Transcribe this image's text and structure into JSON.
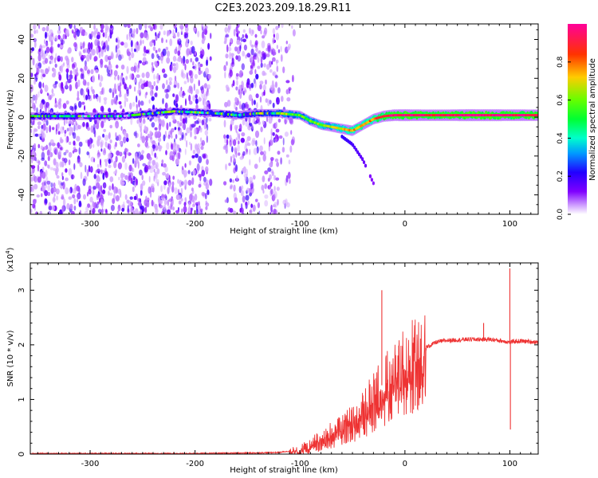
{
  "figure_title": "C2E3.2023.209.18.29.R11",
  "chart_data": [
    {
      "type": "heatmap",
      "title": "",
      "xlabel": "Height of straight line (km)",
      "ylabel": "Frequency (Hz)",
      "xlim": [
        -357,
        127
      ],
      "ylim": [
        -50,
        48
      ],
      "x_ticks": [
        -300,
        -200,
        -100,
        0,
        100
      ],
      "y_ticks": [
        -40,
        -20,
        0,
        20,
        40
      ],
      "colorbar": {
        "label": "Normalized spectral amplitude",
        "range": [
          0,
          1
        ],
        "ticks": [
          0.0,
          0.2,
          0.4,
          0.6,
          0.8
        ],
        "tick_labels": [
          "0.0",
          "0.2",
          "0.4",
          "0.6",
          "0.8"
        ],
        "colors": [
          "#ffffff",
          "#cc99ff",
          "#7f00ff",
          "#2200ff",
          "#00ccff",
          "#00ff66",
          "#66ff00",
          "#ffcc00",
          "#ff3300",
          "#ff0066"
        ]
      },
      "ridge": [
        {
          "x": -355,
          "freq": 0.5,
          "amp": 0.3
        },
        {
          "x": -330,
          "freq": 0.5,
          "amp": 0.28
        },
        {
          "x": -300,
          "freq": 0.5,
          "amp": 0.22
        },
        {
          "x": -270,
          "freq": 0.5,
          "amp": 0.22
        },
        {
          "x": -240,
          "freq": 2,
          "amp": 0.32
        },
        {
          "x": -220,
          "freq": 3,
          "amp": 0.28
        },
        {
          "x": -200,
          "freq": 2.5,
          "amp": 0.32
        },
        {
          "x": -180,
          "freq": 2,
          "amp": 0.3
        },
        {
          "x": -160,
          "freq": 1,
          "amp": 0.36
        },
        {
          "x": -140,
          "freq": 2,
          "amp": 0.34
        },
        {
          "x": -120,
          "freq": 2,
          "amp": 0.4
        },
        {
          "x": -100,
          "freq": 1,
          "amp": 0.48
        },
        {
          "x": -90,
          "freq": -2,
          "amp": 0.5
        },
        {
          "x": -80,
          "freq": -4,
          "amp": 0.55
        },
        {
          "x": -70,
          "freq": -5,
          "amp": 0.55
        },
        {
          "x": -60,
          "freq": -6,
          "amp": 0.62
        },
        {
          "x": -50,
          "freq": -7,
          "amp": 0.7
        },
        {
          "x": -40,
          "freq": -4,
          "amp": 0.66
        },
        {
          "x": -30,
          "freq": -1,
          "amp": 0.72
        },
        {
          "x": -20,
          "freq": 0.5,
          "amp": 0.8
        },
        {
          "x": -10,
          "freq": 1,
          "amp": 0.88
        },
        {
          "x": 0,
          "freq": 1,
          "amp": 0.9
        },
        {
          "x": 20,
          "freq": 1,
          "amp": 0.85
        },
        {
          "x": 40,
          "freq": 1,
          "amp": 0.85
        },
        {
          "x": 60,
          "freq": 1,
          "amp": 0.92
        },
        {
          "x": 80,
          "freq": 1,
          "amp": 0.9
        },
        {
          "x": 100,
          "freq": 1,
          "amp": 0.88
        },
        {
          "x": 127,
          "freq": 1,
          "amp": 0.85
        }
      ],
      "branch": [
        {
          "x": -60,
          "freq": -10,
          "amp": 0.35
        },
        {
          "x": -50,
          "freq": -14,
          "amp": 0.3
        },
        {
          "x": -40,
          "freq": -22,
          "amp": 0.25
        },
        {
          "x": -30,
          "freq": -34,
          "amp": 0.18
        }
      ]
    },
    {
      "type": "line",
      "title": "",
      "xlabel": "Height of straight line (km)",
      "ylabel": "SNR (10 * v/v)",
      "y_scale_label": "(x10",
      "y_scale_exp": "4",
      "y_scale_close": ")",
      "xlim": [
        -357,
        127
      ],
      "ylim": [
        0,
        3.5
      ],
      "x_ticks": [
        -300,
        -200,
        -100,
        0,
        100
      ],
      "y_ticks": [
        0,
        1,
        2,
        3
      ],
      "series": [
        {
          "name": "SNR",
          "color": "#ee3333",
          "x": [
            -357,
            -300,
            -200,
            -150,
            -120,
            -100,
            -80,
            -60,
            -40,
            -30,
            -20,
            -10,
            0,
            10,
            20,
            30,
            40,
            60,
            80,
            90,
            100,
            110,
            127
          ],
          "y": [
            0.01,
            0.01,
            0.01,
            0.02,
            0.03,
            0.08,
            0.3,
            0.5,
            0.8,
            1.1,
            1.3,
            1.5,
            1.7,
            1.85,
            1.95,
            2.05,
            2.08,
            2.1,
            2.1,
            2.08,
            2.05,
            2.07,
            2.05
          ]
        }
      ],
      "spikes": [
        {
          "x": -22,
          "y": 3.0
        },
        {
          "x": 75,
          "y": 2.4
        },
        {
          "x": 100,
          "y": 3.4
        },
        {
          "x": 100.5,
          "y": 0.45
        }
      ]
    }
  ]
}
